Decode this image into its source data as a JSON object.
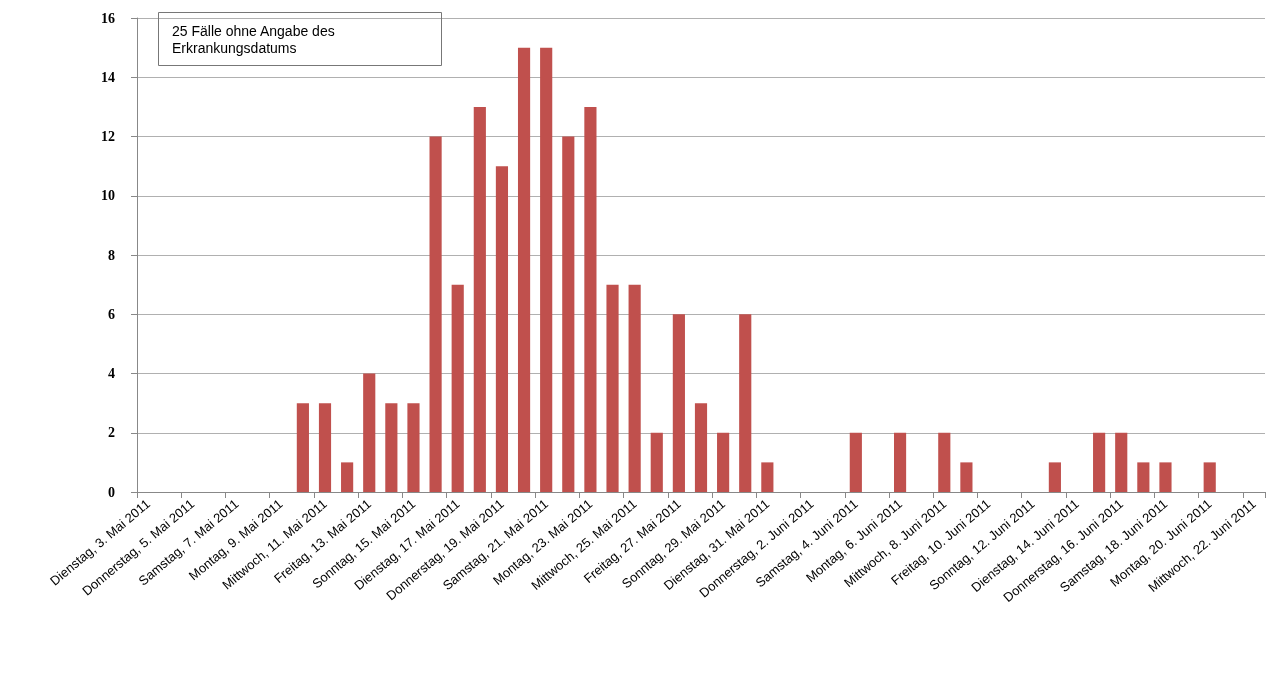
{
  "chart_data": {
    "type": "bar",
    "categories": [
      "Dienstag, 3. Mai 2011",
      null,
      "Donnerstag, 5. Mai 2011",
      null,
      "Samstag, 7. Mai 2011",
      null,
      "Montag, 9. Mai 2011",
      null,
      "Mittwoch, 11. Mai 2011",
      null,
      "Freitag, 13. Mai 2011",
      null,
      "Sonntag, 15. Mai 2011",
      null,
      "Dienstag, 17. Mai 2011",
      null,
      "Donnerstag, 19. Mai 2011",
      null,
      "Samstag, 21. Mai 2011",
      null,
      "Montag, 23. Mai 2011",
      null,
      "Mittwoch, 25. Mai 2011",
      null,
      "Freitag, 27. Mai 2011",
      null,
      "Sonntag, 29. Mai 2011",
      null,
      "Dienstag, 31. Mai 2011",
      null,
      "Donnerstag, 2. Juni 2011",
      null,
      "Samstag, 4. Juni 2011",
      null,
      "Montag, 6. Juni 2011",
      null,
      "Mittwoch, 8. Juni 2011",
      null,
      "Freitag, 10. Juni 2011",
      null,
      "Sonntag, 12. Juni 2011",
      null,
      "Dienstag, 14. Juni 2011",
      null,
      "Donnerstag, 16. Juni 2011",
      null,
      "Samstag, 18. Juni 2011",
      null,
      "Montag, 20. Juni 2011",
      null,
      "Mittwoch, 22. Juni 2011"
    ],
    "values": [
      0,
      0,
      0,
      0,
      0,
      0,
      0,
      3,
      3,
      1,
      4,
      3,
      3,
      12,
      7,
      13,
      11,
      15,
      15,
      12,
      13,
      7,
      7,
      2,
      6,
      3,
      2,
      6,
      1,
      0,
      0,
      0,
      2,
      0,
      2,
      0,
      2,
      1,
      0,
      0,
      0,
      1,
      0,
      2,
      2,
      1,
      1,
      0,
      1,
      0,
      0
    ],
    "color": "#c0504d",
    "ylim": [
      0,
      16
    ],
    "yticks": [
      0,
      2,
      4,
      6,
      8,
      10,
      12,
      14,
      16
    ],
    "grid": "y",
    "annotations": [
      "25 Fälle ohne Angabe des Erkrankungsdatums"
    ]
  }
}
